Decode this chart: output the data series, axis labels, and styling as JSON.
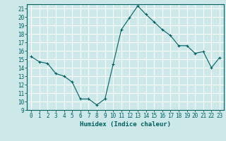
{
  "x": [
    0,
    1,
    2,
    3,
    4,
    5,
    6,
    7,
    8,
    9,
    10,
    11,
    12,
    13,
    14,
    15,
    16,
    17,
    18,
    19,
    20,
    21,
    22,
    23
  ],
  "y": [
    15.3,
    14.7,
    14.5,
    13.3,
    13.0,
    12.3,
    10.3,
    10.3,
    9.6,
    10.3,
    14.4,
    18.5,
    19.9,
    21.3,
    20.3,
    19.4,
    18.5,
    17.8,
    16.6,
    16.6,
    15.7,
    15.9,
    14.0,
    15.2
  ],
  "line_color": "#006060",
  "marker": "+",
  "marker_size": 3,
  "bg_color": "#cce8e8",
  "grid_color": "#ffffff",
  "xlabel": "Humidex (Indice chaleur)",
  "ylabel_ticks": [
    9,
    10,
    11,
    12,
    13,
    14,
    15,
    16,
    17,
    18,
    19,
    20,
    21
  ],
  "xlim": [
    -0.5,
    23.5
  ],
  "ylim": [
    9,
    21.5
  ],
  "tick_color": "#006060",
  "axis_color": "#006060"
}
